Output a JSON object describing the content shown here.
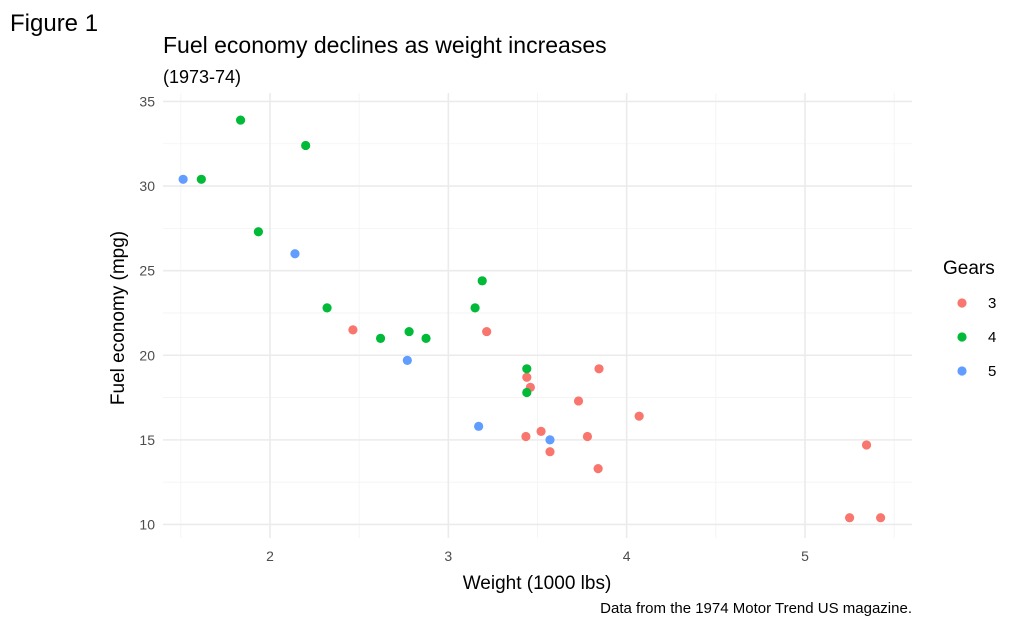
{
  "figure_label": "Figure 1",
  "chart_data": {
    "type": "scatter",
    "title": "Fuel economy declines as weight increases",
    "subtitle": "(1973-74)",
    "caption": "Data from the 1974 Motor Trend US magazine.",
    "xlabel": "Weight (1000 lbs)",
    "ylabel": "Fuel economy (mpg)",
    "xlim": [
      1.4,
      5.6
    ],
    "ylim": [
      9.2,
      35.5
    ],
    "xticks": [
      2,
      3,
      4,
      5
    ],
    "yticks": [
      10,
      15,
      20,
      25,
      30,
      35
    ],
    "grid": true,
    "legend": {
      "title": "Gears",
      "position": "right"
    },
    "series": [
      {
        "name": "3",
        "color": "#F8766D",
        "points": [
          {
            "x": 2.465,
            "y": 21.5
          },
          {
            "x": 3.215,
            "y": 21.4
          },
          {
            "x": 3.44,
            "y": 18.7
          },
          {
            "x": 3.46,
            "y": 18.1
          },
          {
            "x": 3.57,
            "y": 14.3
          },
          {
            "x": 4.07,
            "y": 16.4
          },
          {
            "x": 3.73,
            "y": 17.3
          },
          {
            "x": 3.78,
            "y": 15.2
          },
          {
            "x": 5.25,
            "y": 10.4
          },
          {
            "x": 5.424,
            "y": 10.4
          },
          {
            "x": 5.345,
            "y": 14.7
          },
          {
            "x": 3.52,
            "y": 15.5
          },
          {
            "x": 3.435,
            "y": 15.2
          },
          {
            "x": 3.84,
            "y": 13.3
          },
          {
            "x": 3.845,
            "y": 19.2
          }
        ]
      },
      {
        "name": "4",
        "color": "#00BA38",
        "points": [
          {
            "x": 2.62,
            "y": 21.0
          },
          {
            "x": 2.875,
            "y": 21.0
          },
          {
            "x": 2.32,
            "y": 22.8
          },
          {
            "x": 3.19,
            "y": 24.4
          },
          {
            "x": 3.15,
            "y": 22.8
          },
          {
            "x": 3.44,
            "y": 19.2
          },
          {
            "x": 3.44,
            "y": 17.8
          },
          {
            "x": 2.2,
            "y": 32.4
          },
          {
            "x": 1.615,
            "y": 30.4
          },
          {
            "x": 1.835,
            "y": 33.9
          },
          {
            "x": 1.935,
            "y": 27.3
          },
          {
            "x": 2.78,
            "y": 21.4
          }
        ]
      },
      {
        "name": "5",
        "color": "#619CFF",
        "points": [
          {
            "x": 2.14,
            "y": 26.0
          },
          {
            "x": 1.513,
            "y": 30.4
          },
          {
            "x": 3.17,
            "y": 15.8
          },
          {
            "x": 2.77,
            "y": 19.7
          },
          {
            "x": 3.57,
            "y": 15.0
          }
        ]
      }
    ]
  }
}
